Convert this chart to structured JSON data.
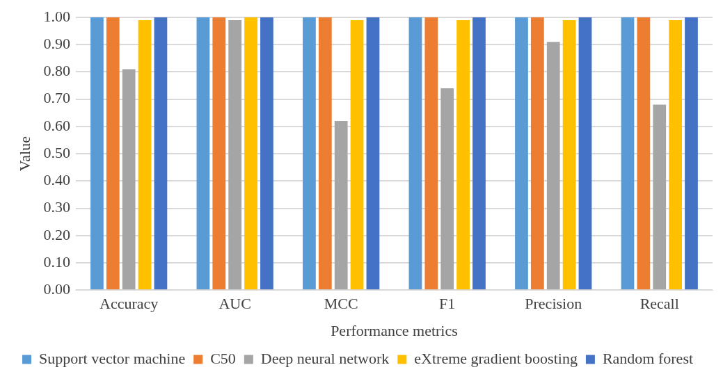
{
  "chart_data": {
    "type": "bar",
    "xlabel": "Performance metrics",
    "ylabel": "Value",
    "categories": [
      "Accuracy",
      "AUC",
      "MCC",
      "F1",
      "Precision",
      "Recall"
    ],
    "series": [
      {
        "name": "Support vector machine",
        "color": "#5b9bd5",
        "values": [
          1,
          1,
          1,
          1,
          1,
          1
        ]
      },
      {
        "name": "C50",
        "color": "#ed7d31",
        "values": [
          1,
          1,
          1,
          1,
          1,
          1
        ]
      },
      {
        "name": "Deep neural network",
        "color": "#a5a5a5",
        "values": [
          0.81,
          0.99,
          0.62,
          0.74,
          0.91,
          0.68
        ]
      },
      {
        "name": "eXtreme gradient boosting",
        "color": "#ffc000",
        "values": [
          0.99,
          1,
          0.99,
          0.99,
          0.99,
          0.99
        ]
      },
      {
        "name": "Random forest",
        "color": "#4472c4",
        "values": [
          1,
          1,
          1,
          1,
          1,
          1
        ]
      }
    ],
    "ylim": [
      0,
      1
    ],
    "yticks": [
      {
        "value": 0,
        "label": "0.00"
      },
      {
        "value": 0.1,
        "label": "0.10"
      },
      {
        "value": 0.2,
        "label": "0.20"
      },
      {
        "value": 0.3,
        "label": "0.30"
      },
      {
        "value": 0.4,
        "label": "0.40"
      },
      {
        "value": 0.5,
        "label": "0.50"
      },
      {
        "value": 0.6,
        "label": "0.60"
      },
      {
        "value": 0.7,
        "label": "0.70"
      },
      {
        "value": 0.8,
        "label": "0.80"
      },
      {
        "value": 0.9,
        "label": "0.90"
      },
      {
        "value": 1,
        "label": "1.00"
      }
    ],
    "grid": "y",
    "legend": "bottom"
  }
}
